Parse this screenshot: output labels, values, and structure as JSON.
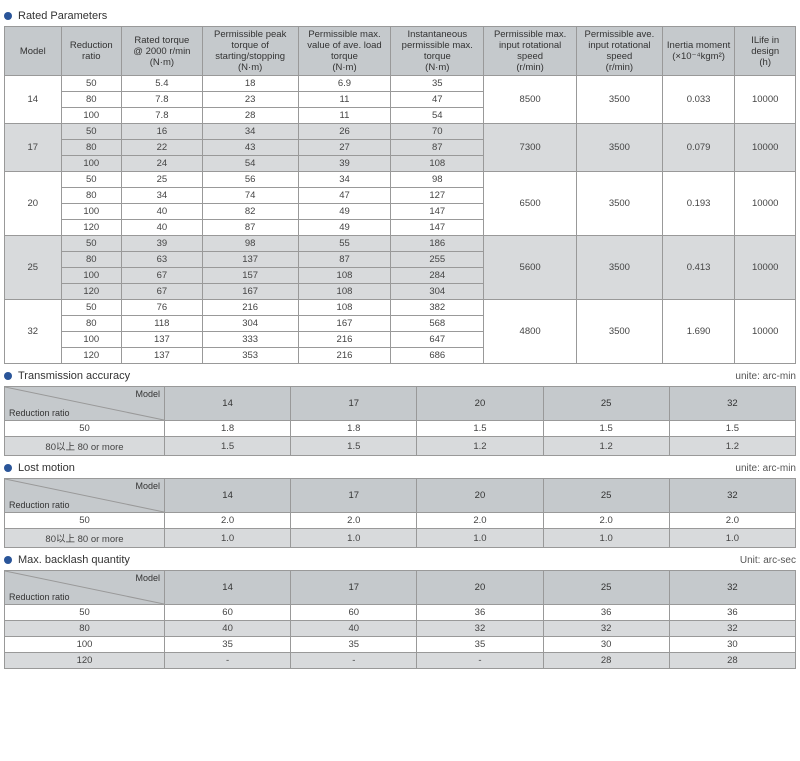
{
  "section1": {
    "title": "Rated Parameters",
    "headers": [
      "Model",
      "Reduction ratio",
      "Rated torque @ 2000 r/min (N·m)",
      "Permissible peak torque of starting/stopping (N·m)",
      "Permissible max. value of ave. load torque (N·m)",
      "Instantaneous permissible max. torque (N·m)",
      "Permissible max. input rotational speed (r/min)",
      "Permissible ave. input rotational speed (r/min)",
      "Inertia moment (×10⁻⁴kgm²)",
      "ILife in design (h)"
    ],
    "groups": [
      {
        "model": "14",
        "span": 3,
        "maxspeed": "8500",
        "avespeed": "3500",
        "inertia": "0.033",
        "life": "10000",
        "alt": false,
        "rows": [
          [
            "50",
            "5.4",
            "18",
            "6.9",
            "35"
          ],
          [
            "80",
            "7.8",
            "23",
            "11",
            "47"
          ],
          [
            "100",
            "7.8",
            "28",
            "11",
            "54"
          ]
        ]
      },
      {
        "model": "17",
        "span": 3,
        "maxspeed": "7300",
        "avespeed": "3500",
        "inertia": "0.079",
        "life": "10000",
        "alt": true,
        "rows": [
          [
            "50",
            "16",
            "34",
            "26",
            "70"
          ],
          [
            "80",
            "22",
            "43",
            "27",
            "87"
          ],
          [
            "100",
            "24",
            "54",
            "39",
            "108"
          ]
        ]
      },
      {
        "model": "20",
        "span": 4,
        "maxspeed": "6500",
        "avespeed": "3500",
        "inertia": "0.193",
        "life": "10000",
        "alt": false,
        "rows": [
          [
            "50",
            "25",
            "56",
            "34",
            "98"
          ],
          [
            "80",
            "34",
            "74",
            "47",
            "127"
          ],
          [
            "100",
            "40",
            "82",
            "49",
            "147"
          ],
          [
            "120",
            "40",
            "87",
            "49",
            "147"
          ]
        ]
      },
      {
        "model": "25",
        "span": 4,
        "maxspeed": "5600",
        "avespeed": "3500",
        "inertia": "0.413",
        "life": "10000",
        "alt": true,
        "rows": [
          [
            "50",
            "39",
            "98",
            "55",
            "186"
          ],
          [
            "80",
            "63",
            "137",
            "87",
            "255"
          ],
          [
            "100",
            "67",
            "157",
            "108",
            "284"
          ],
          [
            "120",
            "67",
            "167",
            "108",
            "304"
          ]
        ]
      },
      {
        "model": "32",
        "span": 4,
        "maxspeed": "4800",
        "avespeed": "3500",
        "inertia": "1.690",
        "life": "10000",
        "alt": false,
        "rows": [
          [
            "50",
            "76",
            "216",
            "108",
            "382"
          ],
          [
            "80",
            "118",
            "304",
            "167",
            "568"
          ],
          [
            "100",
            "137",
            "333",
            "216",
            "647"
          ],
          [
            "120",
            "137",
            "353",
            "216",
            "686"
          ]
        ]
      }
    ]
  },
  "section2": {
    "title": "Transmission accuracy",
    "unit": "unite: arc-min",
    "diag_top": "Model",
    "diag_bot": "Reduction ratio",
    "cols": [
      "14",
      "17",
      "20",
      "25",
      "32"
    ],
    "rows": [
      {
        "label": "50",
        "vals": [
          "1.8",
          "1.8",
          "1.5",
          "1.5",
          "1.5"
        ]
      },
      {
        "label": "80以上 80 or more",
        "vals": [
          "1.5",
          "1.5",
          "1.2",
          "1.2",
          "1.2"
        ]
      }
    ]
  },
  "section3": {
    "title": "Lost motion",
    "unit": "unite: arc-min",
    "diag_top": "Model",
    "diag_bot": "Reduction ratio",
    "cols": [
      "14",
      "17",
      "20",
      "25",
      "32"
    ],
    "rows": [
      {
        "label": "50",
        "vals": [
          "2.0",
          "2.0",
          "2.0",
          "2.0",
          "2.0"
        ]
      },
      {
        "label": "80以上 80 or more",
        "vals": [
          "1.0",
          "1.0",
          "1.0",
          "1.0",
          "1.0"
        ]
      }
    ]
  },
  "section4": {
    "title": "Max. backlash quantity",
    "unit": "Unit: arc-sec",
    "diag_top": "Model",
    "diag_bot": "Reduction ratio",
    "cols": [
      "14",
      "17",
      "20",
      "25",
      "32"
    ],
    "rows": [
      {
        "label": "50",
        "vals": [
          "60",
          "60",
          "36",
          "36",
          "36"
        ]
      },
      {
        "label": "80",
        "vals": [
          "40",
          "40",
          "32",
          "32",
          "32"
        ]
      },
      {
        "label": "100",
        "vals": [
          "35",
          "35",
          "35",
          "30",
          "30"
        ]
      },
      {
        "label": "120",
        "vals": [
          "-",
          "-",
          "-",
          "28",
          "28"
        ]
      }
    ]
  }
}
